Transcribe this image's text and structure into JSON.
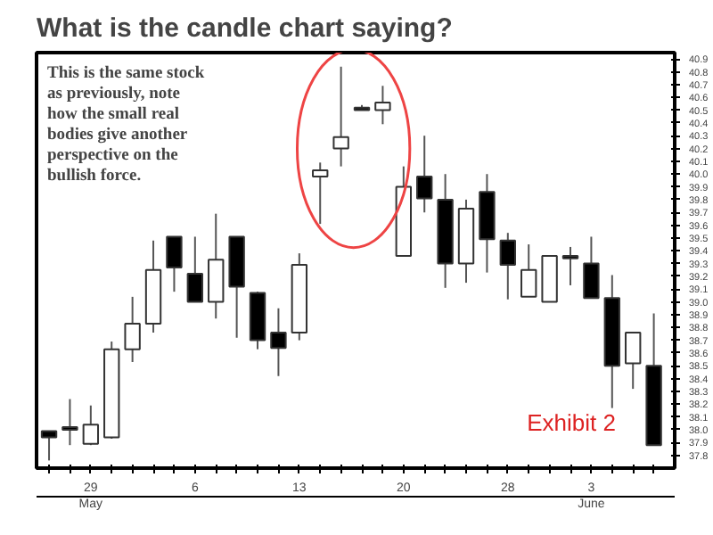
{
  "chart_data": {
    "type": "candlestick",
    "title": "What is the candle chart saying?",
    "categories": [
      null,
      null,
      "29",
      null,
      null,
      null,
      null,
      "6",
      null,
      null,
      null,
      null,
      "13",
      null,
      null,
      null,
      null,
      "20",
      null,
      null,
      null,
      null,
      "28",
      null,
      null,
      null,
      "3",
      null,
      null,
      null
    ],
    "ohlc": [
      [
        37.99,
        37.99,
        37.76,
        37.94
      ],
      [
        38.02,
        38.24,
        37.88,
        38.0
      ],
      [
        37.89,
        38.19,
        37.88,
        38.04
      ],
      [
        37.94,
        38.69,
        37.93,
        38.63
      ],
      [
        38.63,
        39.04,
        38.53,
        38.83
      ],
      [
        38.83,
        39.48,
        38.76,
        39.25
      ],
      [
        39.51,
        39.51,
        39.08,
        39.27
      ],
      [
        39.22,
        39.51,
        39.0,
        39.0
      ],
      [
        39.0,
        39.69,
        38.87,
        39.33
      ],
      [
        39.51,
        39.51,
        38.72,
        39.12
      ],
      [
        39.07,
        39.08,
        38.63,
        38.7
      ],
      [
        38.76,
        38.95,
        38.42,
        38.64
      ],
      [
        38.76,
        39.38,
        38.7,
        39.29
      ],
      [
        39.98,
        40.09,
        39.61,
        40.03
      ],
      [
        40.2,
        40.84,
        40.06,
        40.29
      ],
      [
        40.52,
        40.54,
        40.5,
        40.5
      ],
      [
        40.5,
        40.69,
        40.39,
        40.56
      ],
      [
        39.36,
        40.06,
        39.36,
        39.9
      ],
      [
        39.98,
        40.3,
        39.7,
        39.81
      ],
      [
        39.8,
        40.0,
        39.11,
        39.3
      ],
      [
        39.3,
        39.8,
        39.15,
        39.73
      ],
      [
        39.86,
        40.0,
        39.23,
        39.49
      ],
      [
        39.48,
        39.54,
        39.02,
        39.29
      ],
      [
        39.04,
        39.45,
        39.04,
        39.25
      ],
      [
        39.0,
        39.36,
        39.0,
        39.36
      ],
      [
        39.36,
        39.43,
        39.13,
        39.34
      ],
      [
        39.3,
        39.51,
        39.03,
        39.03
      ],
      [
        39.03,
        39.21,
        38.17,
        38.5
      ],
      [
        38.52,
        38.76,
        38.32,
        38.76
      ],
      [
        38.5,
        38.91,
        37.88,
        37.88
      ]
    ],
    "colors": [
      "#000000",
      "#000000",
      "#ffffff",
      "#ffffff",
      "#ffffff",
      "#ffffff",
      "#000000",
      "#000000",
      "#ffffff",
      "#000000",
      "#000000",
      "#000000",
      "#ffffff",
      "#ffffff",
      "#ffffff",
      "#000000",
      "#ffffff",
      "#ffffff",
      "#000000",
      "#000000",
      "#ffffff",
      "#000000",
      "#000000",
      "#ffffff",
      "#ffffff",
      "#000000",
      "#000000",
      "#000000",
      "#ffffff",
      "#000000"
    ],
    "ylim": [
      37.7,
      40.95
    ],
    "yticks": [
      37.8,
      37.9,
      {
        "value": 38.0,
        "label": "38.0"
      },
      38.1,
      38.2,
      38.3,
      38.4,
      38.5,
      38.6,
      38.7,
      38.8,
      38.9,
      {
        "value": 39.0,
        "label": "39.0"
      },
      39.1,
      39.2,
      39.3,
      39.4,
      39.5,
      39.6,
      39.7,
      39.8,
      39.9,
      {
        "value": 40.0,
        "label": "40.0"
      },
      40.1,
      40.2,
      40.3,
      40.4,
      40.5,
      40.6,
      40.7,
      40.8,
      40.9
    ],
    "grid": false,
    "annotations": [
      "This is the same stock as previously, note how the small real bodies give another perspective on the bullish force.",
      "Exhibit 2",
      "May",
      "June"
    ]
  }
}
